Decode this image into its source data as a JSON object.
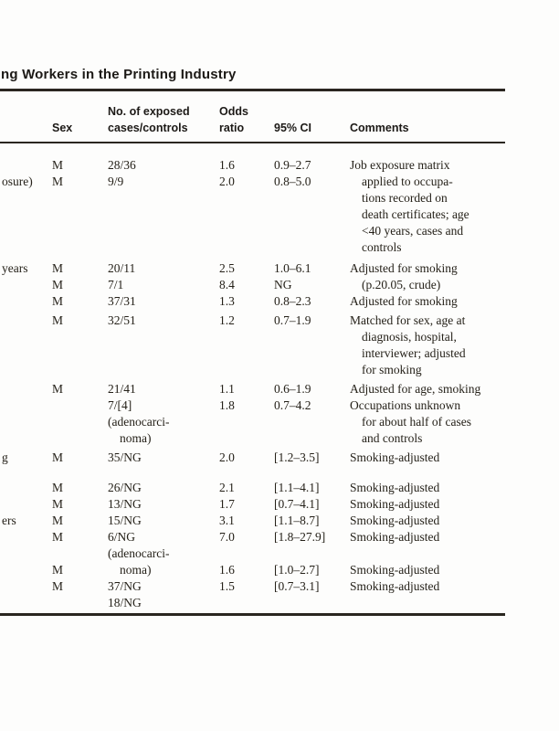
{
  "document": {
    "title": "ng Workers in the Printing Industry"
  },
  "table": {
    "headers": {
      "sex": "Sex",
      "cases_line1": "No. of exposed",
      "cases_line2": "cases/controls",
      "odds_line1": "Odds",
      "odds_line2": "ratio",
      "ci": "95% CI",
      "comments": "Comments"
    },
    "rows": [
      {
        "study": "",
        "sex": "M",
        "cases": "28/36",
        "odds": "1.6",
        "ci": "0.9–2.7",
        "comment": "Job exposure matrix"
      },
      {
        "study": "osure)",
        "sex": "M",
        "cases": "9/9",
        "odds": "2.0",
        "ci": "0.8–5.0",
        "comment": "applied to occupa-",
        "comment_indent": true
      },
      {
        "comment": "tions recorded on",
        "comment_indent": true
      },
      {
        "comment": "death certificates; age",
        "comment_indent": true
      },
      {
        "comment": "<40 years, cases and",
        "comment_indent": true
      },
      {
        "comment": "controls",
        "comment_indent": true
      },
      {
        "study": "years",
        "sex": "M",
        "cases": "20/11",
        "odds": "2.5",
        "ci": "1.0–6.1",
        "comment": "Adjusted for smoking",
        "group_gap": 5
      },
      {
        "sex": "M",
        "cases": "7/1",
        "odds": "8.4",
        "ci": "NG",
        "comment": "(p.20.05, crude)",
        "comment_indent": true
      },
      {
        "sex": "M",
        "cases": "37/31",
        "odds": "1.3",
        "ci": "0.8–2.3",
        "comment": "Adjusted for smoking"
      },
      {
        "sex": "M",
        "cases": "32/51",
        "odds": "1.2",
        "ci": "0.7–1.9",
        "comment": "Matched for sex, age at",
        "group_gap": 3
      },
      {
        "comment": "diagnosis, hospital,",
        "comment_indent": true
      },
      {
        "comment": "interviewer; adjusted",
        "comment_indent": true
      },
      {
        "comment": "for smoking",
        "comment_indent": true
      },
      {
        "sex": "M",
        "cases": "21/41",
        "odds": "1.1",
        "ci": "0.6–1.9",
        "comment": "Adjusted for age, smoking",
        "group_gap": 3
      },
      {
        "cases": "7/[4]",
        "odds": "1.8",
        "ci": "0.7–4.2",
        "comment": "Occupations unknown"
      },
      {
        "cases": "(adenocarci-",
        "comment": "for about half of cases",
        "comment_indent": true
      },
      {
        "cases": "noma)",
        "cases_indent": true,
        "comment": "and controls",
        "comment_indent": true
      },
      {
        "study": "g",
        "sex": "M",
        "cases": "35/NG",
        "odds": "2.0",
        "ci": "[1.2–3.5]",
        "comment": "Smoking-adjusted",
        "group_gap": 3
      },
      {
        "sex": "M",
        "cases": "26/NG",
        "odds": "2.1",
        "ci": "[1.1–4.1]",
        "comment": "Smoking-adjusted",
        "group_gap": 15
      },
      {
        "sex": "M",
        "cases": "13/NG",
        "odds": "1.7",
        "ci": "[0.7–4.1]",
        "comment": "Smoking-adjusted"
      },
      {
        "study": "ers",
        "sex": "M",
        "cases": "15/NG",
        "odds": "3.1",
        "ci": "[1.1–8.7]",
        "comment": "Smoking-adjusted"
      },
      {
        "sex": "M",
        "cases": "6/NG",
        "odds": "7.0",
        "ci": "[1.8–27.9]",
        "comment": "Smoking-adjusted"
      },
      {
        "cases": "(adenocarci-"
      },
      {
        "sex": "M",
        "cases": "noma)",
        "cases_indent": true,
        "odds": "1.6",
        "ci": "[1.0–2.7]",
        "comment": "Smoking-adjusted"
      },
      {
        "sex": "M",
        "cases": "37/NG",
        "odds": "1.5",
        "ci": "[0.7–3.1]",
        "comment": "Smoking-adjusted"
      },
      {
        "cases": "18/NG"
      }
    ]
  }
}
